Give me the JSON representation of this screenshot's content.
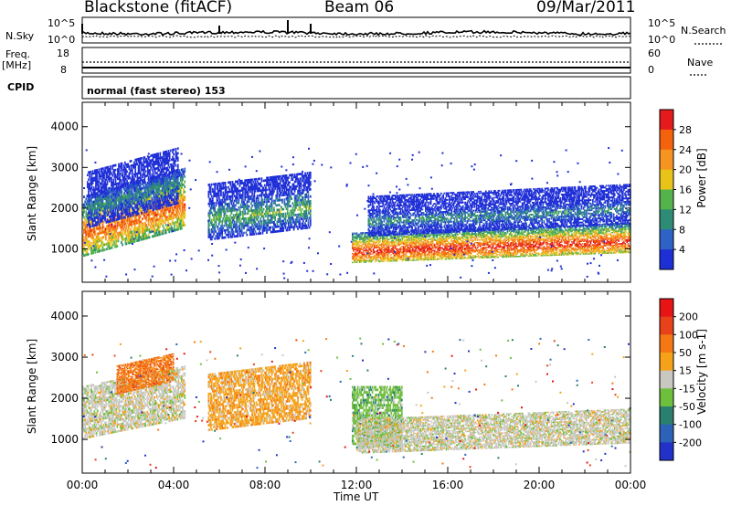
{
  "header": {
    "radar": "Blackstone (fitACF)",
    "beam": "Beam 06",
    "date": "09/Mar/2011"
  },
  "top_panels": {
    "nsky_label": "N.Sky",
    "nsky_ticks": [
      "10^5",
      "10^0"
    ],
    "nsearch_label": "N.Search",
    "nsearch_ticks": [
      "10^5",
      "10^0"
    ],
    "freq_label": "Freq.",
    "freq_unit": "[MHz]",
    "freq_ticks": [
      "18",
      "8"
    ],
    "nave_label": "Nave",
    "nave_ticks": [
      "60",
      "0"
    ],
    "cpid_label": "CPID",
    "cpid_value": "normal (fast stereo) 153"
  },
  "chart_data": [
    {
      "type": "heatmap",
      "name": "power",
      "ylabel": "Slant Range [km]",
      "yticks": [
        1000,
        2000,
        3000,
        4000
      ],
      "ylim": [
        180,
        4600
      ],
      "xlim": [
        0,
        24
      ],
      "colorbar_label": "Power [dB]",
      "colorbar_ticks": [
        "4",
        "8",
        "12",
        "16",
        "20",
        "24",
        "28"
      ],
      "colorbar_colors": [
        "#1f2fd6",
        "#2e62c4",
        "#2e8b76",
        "#54b34a",
        "#e8c41a",
        "#f59420",
        "#f4620e",
        "#e41a1c"
      ],
      "regions": [
        {
          "t0": 0.0,
          "t1": 4.5,
          "r0": 800,
          "r1": 2300,
          "rise": 700,
          "level": 6
        },
        {
          "t0": 0.2,
          "t1": 4.2,
          "r0": 1500,
          "r1": 2900,
          "rise": 600,
          "level": 2
        },
        {
          "t0": 5.5,
          "t1": 10.0,
          "r0": 1200,
          "r1": 2600,
          "rise": 300,
          "level": 3
        },
        {
          "t0": 11.8,
          "t1": 24.0,
          "r0": 650,
          "r1": 1400,
          "rise": 250,
          "level": 7
        },
        {
          "t0": 12.5,
          "t1": 24.0,
          "r0": 1300,
          "r1": 2300,
          "rise": 300,
          "level": 2
        }
      ]
    },
    {
      "type": "heatmap",
      "name": "velocity",
      "ylabel": "Slant Range [km]",
      "yticks": [
        1000,
        2000,
        3000,
        4000
      ],
      "ylim": [
        180,
        4600
      ],
      "xlim": [
        0,
        24
      ],
      "colorbar_label": "Velocity [m s-1]",
      "colorbar_ticks": [
        "200",
        "100",
        "50",
        "15",
        "-15",
        "-50",
        "-100",
        "-200"
      ],
      "colorbar_colors": [
        "#2232c8",
        "#2c63b8",
        "#2a7f6e",
        "#6ebf3c",
        "#c8c8c0",
        "#f5a21a",
        "#f57814",
        "#e8421a",
        "#e61414"
      ],
      "regions": [
        {
          "t0": 0.0,
          "t1": 4.5,
          "r0": 1000,
          "r1": 2300,
          "rise": 500,
          "level": 4
        },
        {
          "t0": 1.5,
          "t1": 4.0,
          "r0": 2100,
          "r1": 2800,
          "rise": 300,
          "level": 6
        },
        {
          "t0": 5.5,
          "t1": 10.0,
          "r0": 1200,
          "r1": 2600,
          "rise": 300,
          "level": 5
        },
        {
          "t0": 11.8,
          "t1": 14.0,
          "r0": 800,
          "r1": 2300,
          "rise": 0,
          "level": 3
        },
        {
          "t0": 12.0,
          "t1": 24.0,
          "r0": 650,
          "r1": 1500,
          "rise": 250,
          "level": 4
        }
      ]
    }
  ],
  "x_axis": {
    "label": "Time UT",
    "ticks": [
      "00:00",
      "04:00",
      "08:00",
      "12:00",
      "16:00",
      "20:00",
      "00:00"
    ]
  }
}
